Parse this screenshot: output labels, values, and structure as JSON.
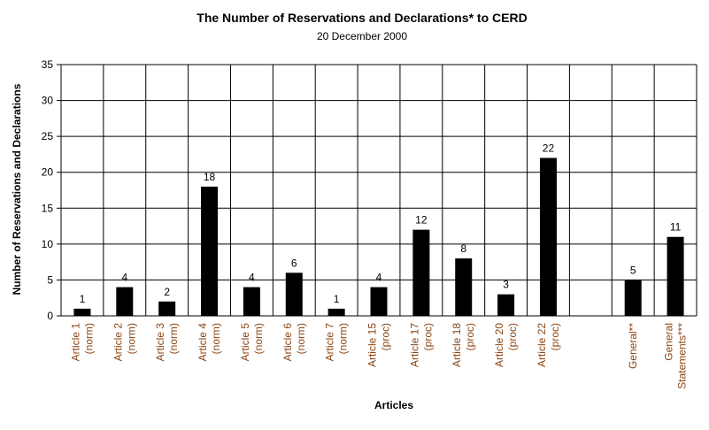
{
  "chart_data": {
    "type": "bar",
    "title": "The Number of Reservations and Declarations* to CERD",
    "subtitle": "20 December 2000",
    "xlabel": "Articles",
    "ylabel": "Number of Reservations and Declarations",
    "ylim": [
      0,
      35
    ],
    "yticks": [
      0,
      5,
      10,
      15,
      20,
      25,
      30,
      35
    ],
    "grid": true,
    "categories": [
      [
        "Article 1",
        "(norm)"
      ],
      [
        "Article 2",
        "(norm)"
      ],
      [
        "Article 3",
        "(norm)"
      ],
      [
        "Article 4",
        "(norm)"
      ],
      [
        "Article 5",
        "(norm)"
      ],
      [
        "Article 6",
        "(norm)"
      ],
      [
        "Article 7",
        "(norm)"
      ],
      [
        "Article 15",
        "(proc)"
      ],
      [
        "Article 17",
        "(proc)"
      ],
      [
        "Article 18",
        "(proc)"
      ],
      [
        "Article 20",
        "(proc)"
      ],
      [
        "Article 22",
        "(proc)"
      ],
      [],
      [
        "General**"
      ],
      [
        "General",
        "Statements***"
      ]
    ],
    "values": [
      1,
      4,
      2,
      18,
      4,
      6,
      1,
      4,
      12,
      8,
      3,
      22,
      null,
      5,
      11
    ],
    "bar_color": "#000000",
    "category_label_color": "#8B4513"
  }
}
